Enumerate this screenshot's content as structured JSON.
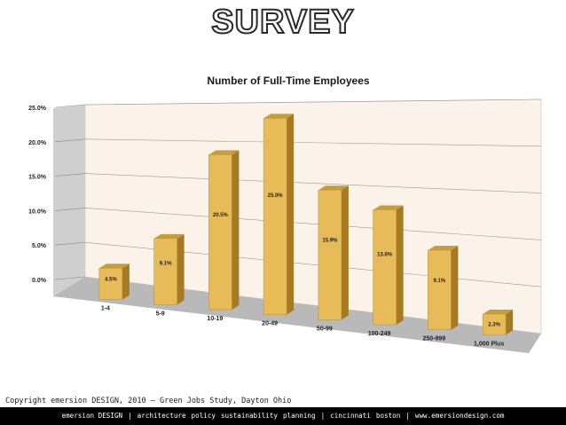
{
  "slide": {
    "title": "SURVEY"
  },
  "footer": {
    "copyright": "Copyright emersion DESIGN, 2010 – Green Jobs Study, Dayton Ohio",
    "items": [
      "emersion DESIGN",
      "|",
      "architecture",
      "policy",
      "sustainability",
      "planning",
      "|",
      "cincinnati",
      "boston",
      "|",
      "www.emersiondesign.com"
    ]
  },
  "colors": {
    "bar_front": "#e7bb57",
    "bar_side": "#a67a22",
    "bar_top": "#c69c3e",
    "wall": "#fbf3ea",
    "floor": "#b9b9b9",
    "footer_bg": "#000000"
  },
  "chart_data": {
    "type": "bar",
    "title": "Number of Full-Time Employees",
    "categories": [
      "1-4",
      "5-9",
      "10-19",
      "20-49",
      "50-99",
      "100-249",
      "250-999",
      "1,000 Plus"
    ],
    "values": [
      4.5,
      9.1,
      20.5,
      25.0,
      15.9,
      13.6,
      9.1,
      2.3
    ],
    "data_labels": [
      "4.5%",
      "9.1%",
      "20.5%",
      "25.0%",
      "15.9%",
      "13.6%",
      "9.1%",
      "2.3%"
    ],
    "yticks": [
      "0.0%",
      "5.0%",
      "10.0%",
      "15.0%",
      "20.0%",
      "25.0%"
    ],
    "ylim": [
      0,
      25
    ],
    "grid": true,
    "style": "3d"
  }
}
